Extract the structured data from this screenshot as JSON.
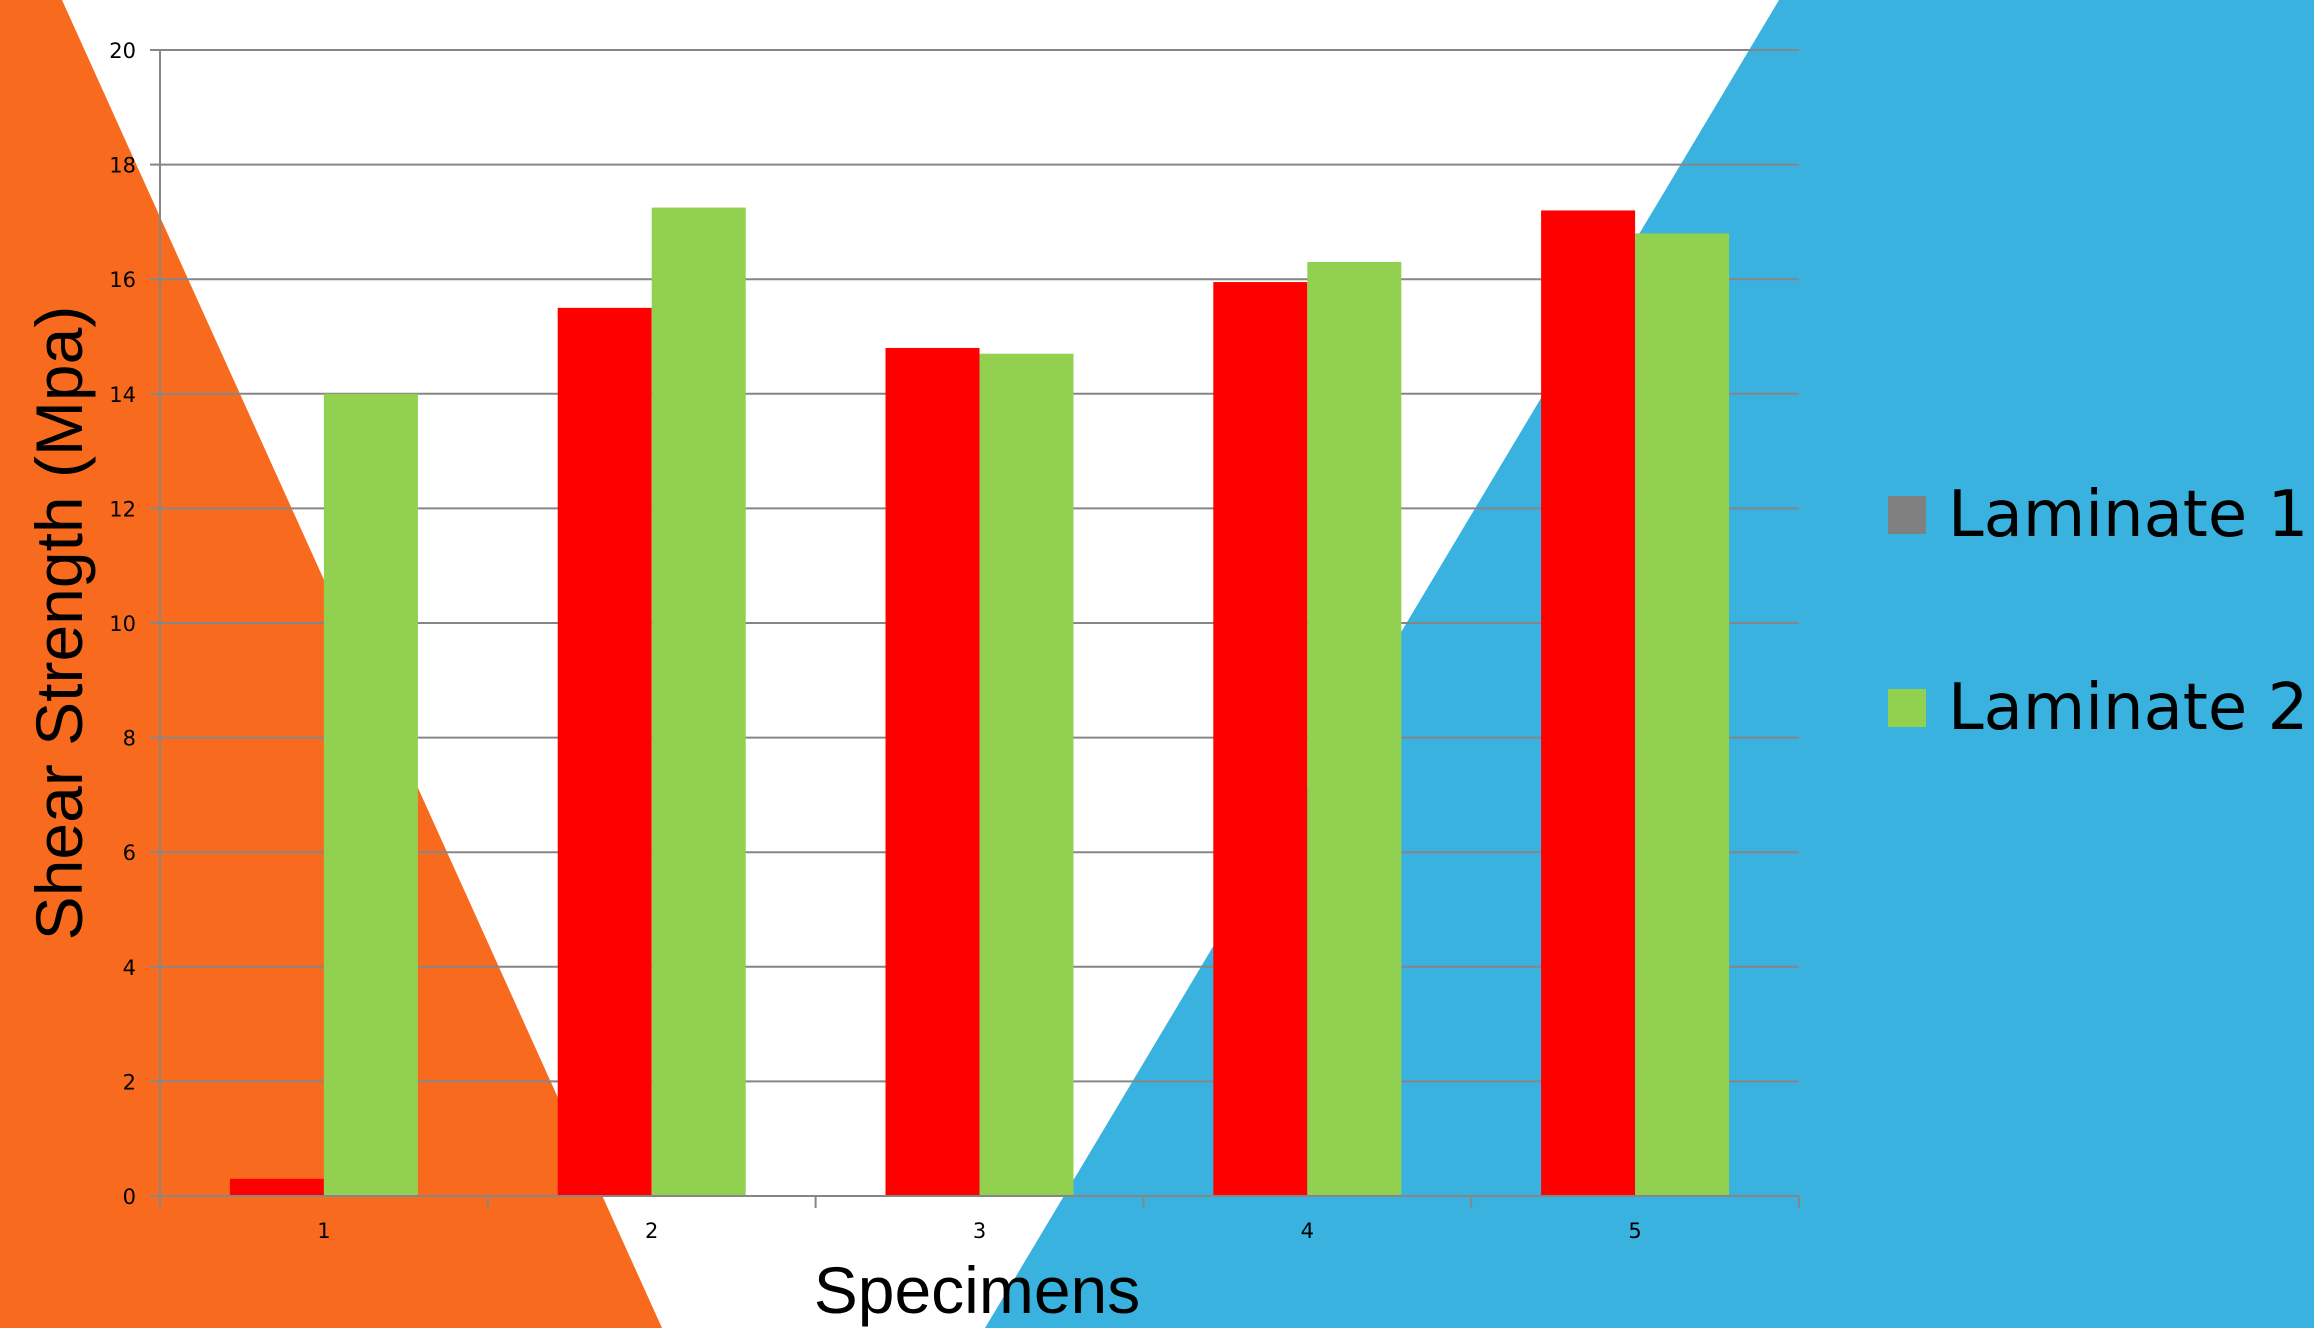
{
  "chart_data": {
    "type": "bar",
    "title": "",
    "xlabel": "Specimens",
    "ylabel": "Shear Strength (Mpa)",
    "categories": [
      "1",
      "2",
      "3",
      "4",
      "5"
    ],
    "series": [
      {
        "name": "Laminate 1",
        "values": [
          0.3,
          15.5,
          14.8,
          15.95,
          17.2
        ],
        "color": "#ff0000",
        "legend_color": "#808080"
      },
      {
        "name": "Laminate 2",
        "values": [
          14.0,
          17.25,
          14.7,
          16.3,
          16.8
        ],
        "color": "#92d050",
        "legend_color": "#92d050"
      }
    ],
    "ylim": [
      0,
      20
    ],
    "yticks": [
      "0",
      "2",
      "4",
      "6",
      "8",
      "10",
      "12",
      "14",
      "16",
      "18",
      "20"
    ],
    "grid": true,
    "legend_position": "right"
  },
  "background": {
    "left_shape_color": "#f86b1e",
    "right_shape_color": "#3ab2df",
    "gridline_color": "#868686"
  }
}
